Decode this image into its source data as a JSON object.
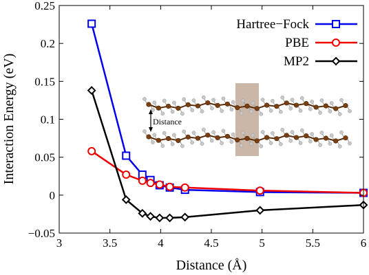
{
  "chart_data": {
    "type": "line",
    "xlabel": "Distance (Å)",
    "ylabel": "Interaction Energy (eV)",
    "xlim": [
      3,
      6
    ],
    "ylim": [
      -0.05,
      0.25
    ],
    "xticks": [
      3,
      3.5,
      4,
      4.5,
      5,
      5.5,
      6
    ],
    "xtick_labels": [
      "3",
      "3.5",
      "4",
      "4.5",
      "5",
      "5.5",
      "6"
    ],
    "yticks": [
      -0.05,
      0,
      0.05,
      0.1,
      0.15,
      0.2,
      0.25
    ],
    "ytick_labels": [
      "−0.05",
      "0",
      "0.05",
      "0.1",
      "0.15",
      "0.2",
      "0.25"
    ],
    "legend_position": "top-right",
    "series": [
      {
        "name": "Hartree−Fock",
        "color": "#0000ee",
        "marker": "square",
        "x": [
          3.32,
          3.66,
          3.82,
          3.9,
          3.99,
          4.09,
          4.24,
          4.98,
          6.0
        ],
        "y": [
          0.226,
          0.052,
          0.027,
          0.02,
          0.013,
          0.01,
          0.007,
          0.004,
          0.003
        ]
      },
      {
        "name": "PBE",
        "color": "#ee0000",
        "marker": "circle",
        "x": [
          3.32,
          3.66,
          3.82,
          3.9,
          3.99,
          4.09,
          4.24,
          4.98,
          6.0
        ],
        "y": [
          0.058,
          0.027,
          0.019,
          0.016,
          0.014,
          0.011,
          0.01,
          0.006,
          0.003
        ]
      },
      {
        "name": "MP2",
        "color": "#000000",
        "marker": "diamond",
        "x": [
          3.32,
          3.66,
          3.82,
          3.9,
          3.99,
          4.09,
          4.24,
          4.98,
          6.0
        ],
        "y": [
          0.138,
          -0.006,
          -0.024,
          -0.028,
          -0.03,
          -0.03,
          -0.029,
          -0.02,
          -0.013
        ]
      }
    ],
    "inset": {
      "label": "Distance",
      "carbon_color": "#7a3e10",
      "hydrogen_color": "#c8c8c8",
      "highlight_color": "#c2aa98"
    }
  }
}
